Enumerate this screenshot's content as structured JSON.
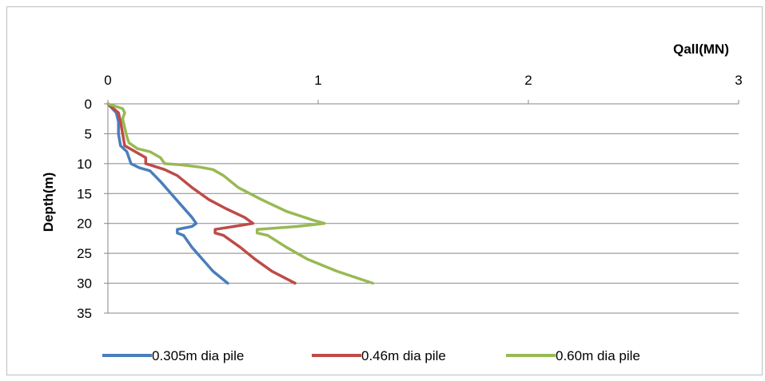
{
  "chart_data": {
    "type": "line",
    "xlabel": "Qall(MN)",
    "ylabel": "Depth(m)",
    "xlim": [
      0,
      3
    ],
    "ylim": [
      0,
      35
    ],
    "x_ticks": [
      "0",
      "1",
      "2",
      "3"
    ],
    "y_ticks": [
      "0",
      "5",
      "10",
      "15",
      "20",
      "25",
      "30",
      "35"
    ],
    "x_axis_position": "top",
    "y_axis_inverted": true,
    "grid": "horizontal",
    "legend_position": "bottom",
    "series": [
      {
        "name": "0.305m dia pile",
        "color": "#4a7ebb",
        "points": [
          [
            0,
            0
          ],
          [
            0.04,
            1.5
          ],
          [
            0.05,
            3
          ],
          [
            0.05,
            5
          ],
          [
            0.06,
            7
          ],
          [
            0.09,
            8
          ],
          [
            0.11,
            10
          ],
          [
            0.15,
            10.7
          ],
          [
            0.2,
            11.2
          ],
          [
            0.25,
            13
          ],
          [
            0.3,
            15
          ],
          [
            0.35,
            17
          ],
          [
            0.4,
            19
          ],
          [
            0.42,
            20
          ],
          [
            0.4,
            20.5
          ],
          [
            0.33,
            21
          ],
          [
            0.33,
            21.6
          ],
          [
            0.36,
            22
          ],
          [
            0.4,
            24
          ],
          [
            0.45,
            26
          ],
          [
            0.5,
            28
          ],
          [
            0.57,
            30
          ]
        ]
      },
      {
        "name": "0.46m dia pile",
        "color": "#be4b48",
        "points": [
          [
            0,
            0
          ],
          [
            0.05,
            1.5
          ],
          [
            0.06,
            3
          ],
          [
            0.07,
            5
          ],
          [
            0.08,
            7
          ],
          [
            0.13,
            8
          ],
          [
            0.18,
            9
          ],
          [
            0.18,
            10
          ],
          [
            0.2,
            10.2
          ],
          [
            0.27,
            11
          ],
          [
            0.33,
            12
          ],
          [
            0.4,
            14
          ],
          [
            0.48,
            16
          ],
          [
            0.56,
            17.5
          ],
          [
            0.65,
            19
          ],
          [
            0.69,
            20
          ],
          [
            0.6,
            20.5
          ],
          [
            0.51,
            21
          ],
          [
            0.51,
            21.6
          ],
          [
            0.55,
            22
          ],
          [
            0.63,
            24
          ],
          [
            0.7,
            26
          ],
          [
            0.78,
            28
          ],
          [
            0.89,
            30
          ]
        ]
      },
      {
        "name": "0.60m dia pile",
        "color": "#98b954",
        "points": [
          [
            0,
            0
          ],
          [
            0.07,
            0.8
          ],
          [
            0.08,
            1.5
          ],
          [
            0.07,
            2.5
          ],
          [
            0.08,
            4
          ],
          [
            0.09,
            5.5
          ],
          [
            0.1,
            6.5
          ],
          [
            0.14,
            7.5
          ],
          [
            0.2,
            8
          ],
          [
            0.25,
            9
          ],
          [
            0.27,
            10
          ],
          [
            0.35,
            10.2
          ],
          [
            0.44,
            10.6
          ],
          [
            0.5,
            11
          ],
          [
            0.55,
            12
          ],
          [
            0.62,
            14
          ],
          [
            0.73,
            16
          ],
          [
            0.85,
            18
          ],
          [
            0.98,
            19.5
          ],
          [
            1.03,
            20
          ],
          [
            0.9,
            20.5
          ],
          [
            0.71,
            21
          ],
          [
            0.71,
            21.6
          ],
          [
            0.76,
            22
          ],
          [
            0.85,
            24
          ],
          [
            0.95,
            26
          ],
          [
            1.09,
            28
          ],
          [
            1.26,
            30
          ]
        ]
      }
    ]
  }
}
